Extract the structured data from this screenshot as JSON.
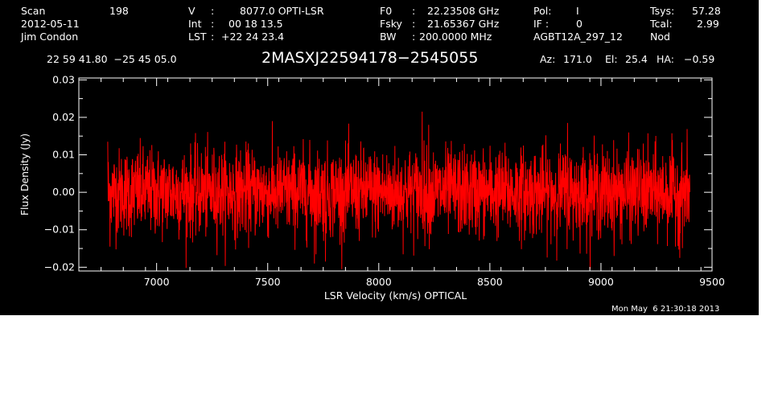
{
  "header": {
    "scan_label": "Scan",
    "scan_value": "198",
    "date": "2012-05-11",
    "observer": "Jim Condon",
    "velocity_label": "V",
    "velocity_value": "8077.0 OPTI-LSR",
    "int_label": "Int",
    "int_value": "00 18 13.5",
    "lst_label": "LST",
    "lst_value": "+22 24 23.4",
    "f0_label": "F0",
    "f0_value": "22.23508 GHz",
    "fsky_label": "Fsky",
    "fsky_value": "21.65367 GHz",
    "bw_label": "BW",
    "bw_value": "200.0000 MHz",
    "pol_label": "Pol:",
    "pol_value": "I",
    "if_label": "IF :",
    "if_value": "0",
    "project": "AGBT12A_297_12",
    "tsys_label": "Tsys:",
    "tsys_value": "57.28",
    "tcal_label": "Tcal:",
    "tcal_value": "2.99",
    "mode": "Nod",
    "coords": "22 59 41.80  −25 45 05.0",
    "source": "2MASXJ22594178−2545055",
    "az_label": "Az:",
    "az_value": "171.0",
    "el_label": "El:",
    "el_value": "25.4",
    "ha_label": "HA:",
    "ha_value": "−0.59",
    "timestamp": "Mon May  6 21:30:18 2013"
  },
  "chart_data": {
    "type": "line",
    "xlabel": "LSR Velocity (km/s) OPTICAL",
    "ylabel": "Flux Density (Jy)",
    "xlim": [
      6650,
      9500
    ],
    "ylim": [
      -0.021,
      0.0305
    ],
    "x_ticks": [
      7000,
      7500,
      8000,
      8500,
      9000,
      9500
    ],
    "x_tick_labels": [
      "7000",
      "7500",
      "8000",
      "8500",
      "9000",
      "9500"
    ],
    "y_ticks": [
      -0.02,
      -0.01,
      0.0,
      0.01,
      0.02,
      0.03
    ],
    "y_tick_labels": [
      "−0.02",
      "−0.01",
      "0.00",
      "0.01",
      "0.02",
      "0.03"
    ],
    "grid": false,
    "series": [
      {
        "color": "#ff0000",
        "x_range": [
          6780,
          9400
        ],
        "noise_rms": 0.0058,
        "mean": 0.0,
        "description": "noise-dominated spectrum",
        "features": [
          {
            "x": 6780,
            "y": 0.0135
          },
          {
            "x": 6790,
            "y": -0.0145
          },
          {
            "x": 7710,
            "y": -0.019
          },
          {
            "x": 7760,
            "y": -0.0185
          },
          {
            "x": 8195,
            "y": 0.0215
          },
          {
            "x": 8225,
            "y": 0.018
          },
          {
            "x": 8850,
            "y": 0.0185
          },
          {
            "x": 9355,
            "y": -0.0175
          }
        ]
      }
    ]
  }
}
